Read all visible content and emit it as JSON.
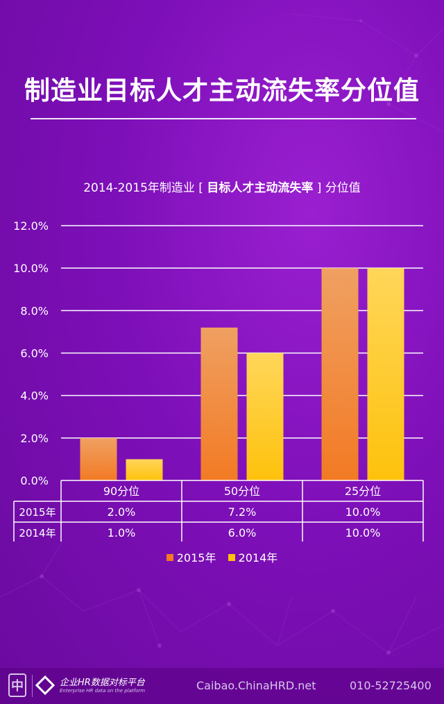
{
  "page": {
    "title": "制造业目标人才主动流失率分位值"
  },
  "subtitle": {
    "prefix": "2014-2015年制造业 [ ",
    "emphasis": "目标人才主动流失率",
    "suffix": " ] 分位值"
  },
  "chart_data": {
    "type": "bar",
    "categories": [
      "90分位",
      "50分位",
      "25分位"
    ],
    "series": [
      {
        "name": "2015年",
        "values": [
          2.0,
          7.2,
          10.0
        ],
        "labels": [
          "2.0%",
          "7.2%",
          "10.0%"
        ],
        "color": "#f27a24"
      },
      {
        "name": "2014年",
        "values": [
          1.0,
          6.0,
          10.0
        ],
        "labels": [
          "1.0%",
          "6.0%",
          "10.0%"
        ],
        "color": "#fec20c"
      }
    ],
    "ylim": [
      0,
      12
    ],
    "yticks": [
      "0.0%",
      "2.0%",
      "4.0%",
      "6.0%",
      "8.0%",
      "10.0%",
      "12.0%"
    ],
    "grid": true,
    "data_table": true,
    "legend_position": "bottom"
  },
  "footer": {
    "logo_char": "中",
    "platform_name": "企业HR数据对标平台",
    "platform_name_en": "Enterprise HR data on the platform",
    "url": "Caibao.ChinaHRD.net",
    "phone": "010-52725400"
  },
  "colors": {
    "background": "#7d0fb8",
    "series_2015": "#f27a24",
    "series_2014": "#fec20c",
    "text": "#ffffff"
  }
}
